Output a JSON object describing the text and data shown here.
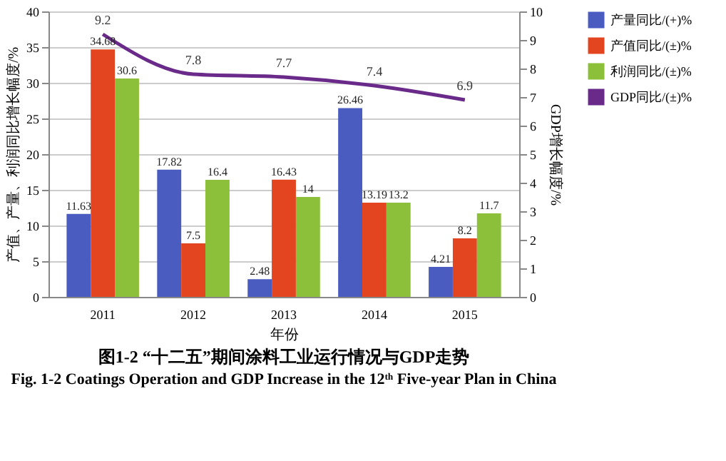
{
  "chart_data": {
    "type": "bar",
    "categories": [
      "2011",
      "2012",
      "2013",
      "2014",
      "2015"
    ],
    "xlabel": "年份",
    "ylabel": "产值、产量、利润同比增长幅度/%",
    "y2label": "GDP增长幅度/%",
    "ylim": [
      0,
      40
    ],
    "yticks": [
      0,
      5,
      10,
      15,
      20,
      25,
      30,
      35,
      40
    ],
    "y2lim": [
      0,
      10
    ],
    "y2ticks": [
      0,
      1,
      2,
      3,
      4,
      5,
      6,
      7,
      8,
      9,
      10
    ],
    "series": [
      {
        "name": "产量同比/(+)%",
        "color": "#4a5cc0",
        "values": [
          11.63,
          17.82,
          2.48,
          26.46,
          4.21
        ]
      },
      {
        "name": "产值同比/(±)%",
        "color": "#e2451f",
        "values": [
          34.68,
          7.5,
          16.43,
          13.19,
          8.2
        ]
      },
      {
        "name": "利润同比/(±)%",
        "color": "#8cbf3a",
        "values": [
          30.6,
          16.4,
          14,
          13.2,
          11.7
        ]
      },
      {
        "name": "GDP同比/(±)%",
        "color": "#6a2a8a",
        "type": "line",
        "axis": "y2",
        "marker": "none",
        "values": [
          9.2,
          7.8,
          7.7,
          7.4,
          6.9
        ]
      }
    ],
    "data_labels": true,
    "grid": "y",
    "legend": "right",
    "annotations": [
      "图1-2 “十二五”期间涂料工业运行情况与GDP走势",
      "Fig. 1-2 Coatings Operation and GDP Increase in the 12ᵗʰ Five-year Plan in China"
    ]
  }
}
